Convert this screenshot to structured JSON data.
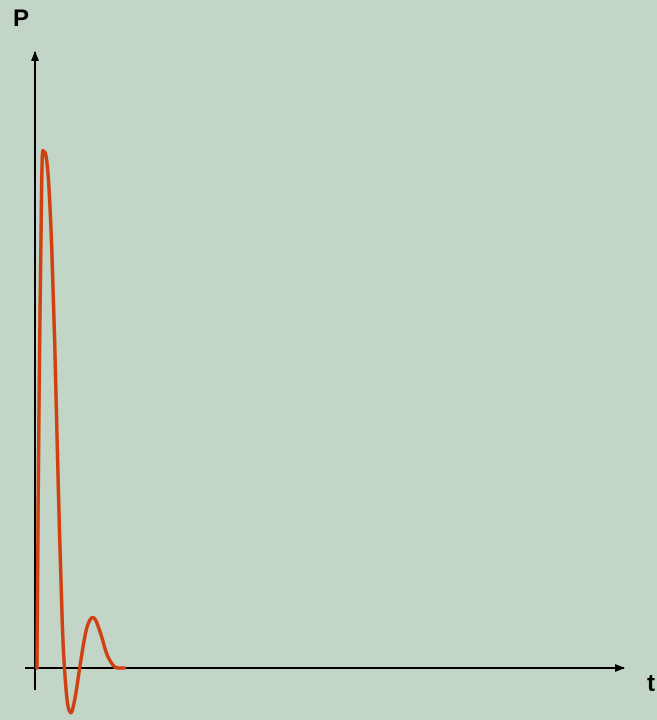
{
  "chart_data": {
    "type": "line",
    "title": "",
    "xlabel": "t",
    "ylabel": "P",
    "grid": false,
    "legend": "none",
    "ticks": "none",
    "xlim": [
      0,
      100
    ],
    "ylim": [
      -8.5,
      100
    ],
    "series": [
      {
        "color": "#d04010",
        "x": [
          0,
          0.3,
          0.8,
          1.2,
          1.6,
          2.0,
          2.5,
          3.0,
          3.6,
          4.3,
          5.0,
          5.7,
          6.4,
          7.1,
          7.8,
          8.4,
          9.0,
          9.5,
          10.0,
          10.5,
          11.0,
          11.5,
          12.0,
          12.6,
          13.2,
          13.8,
          14.3,
          14.8
        ],
        "y": [
          0,
          45,
          93,
          98,
          97,
          92,
          80,
          62,
          35,
          8,
          -5,
          -8.5,
          -6,
          -1,
          4,
          7.5,
          9.2,
          9.6,
          9.0,
          7.5,
          5.8,
          3.8,
          2.2,
          1.0,
          0.2,
          0,
          0,
          0
        ]
      }
    ],
    "colors": {
      "background": "#c3d5c6",
      "axis": "#000000",
      "curve": "#d04010"
    }
  }
}
